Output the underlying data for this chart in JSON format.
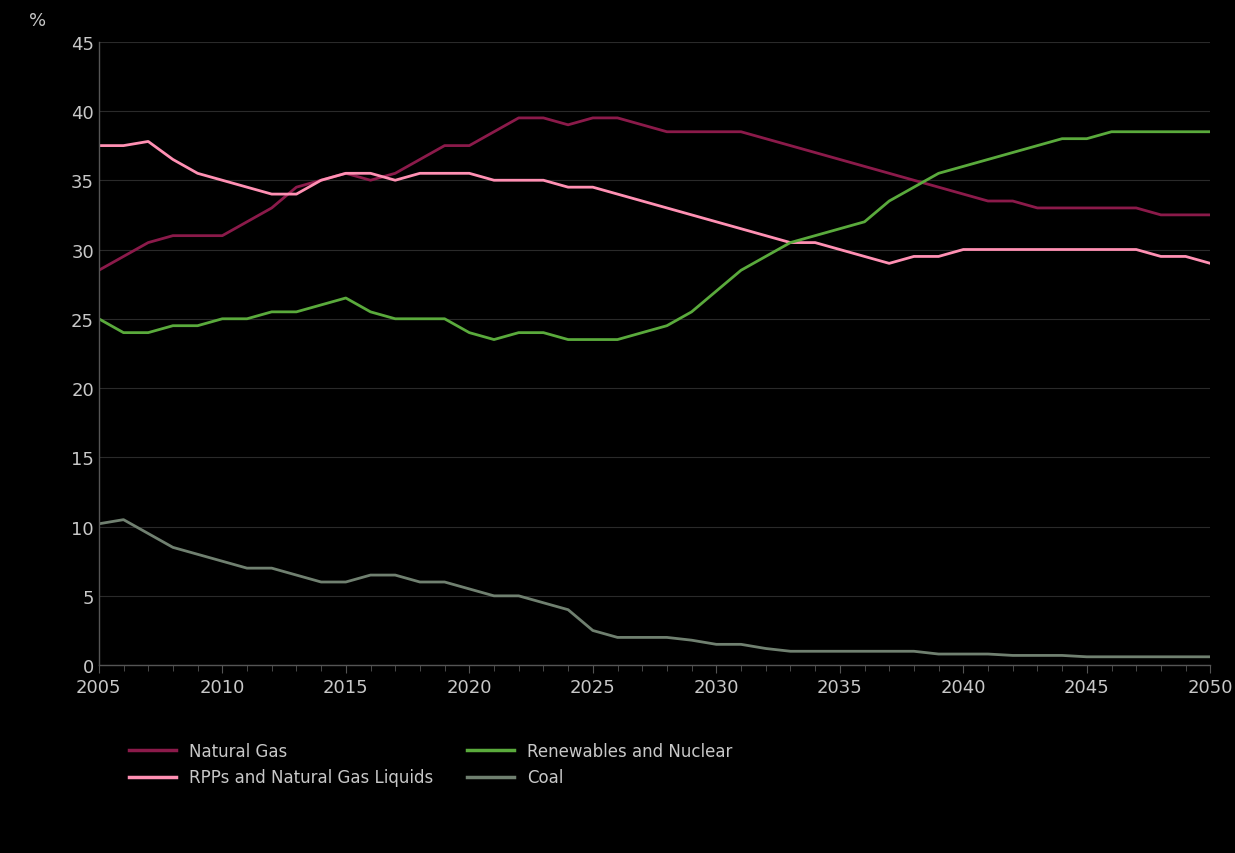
{
  "ylabel": "%",
  "xlim": [
    2005,
    2050
  ],
  "ylim": [
    0,
    45
  ],
  "yticks": [
    0,
    5,
    10,
    15,
    20,
    25,
    30,
    35,
    40,
    45
  ],
  "xticks": [
    2005,
    2010,
    2015,
    2020,
    2025,
    2030,
    2035,
    2040,
    2045,
    2050
  ],
  "background_color": "#000000",
  "text_color": "#c8c8c8",
  "grid_color": "#2a2a2a",
  "spine_color": "#555555",
  "series": [
    {
      "name": "Natural Gas",
      "color": "#8B1A4A",
      "x": [
        2005,
        2006,
        2007,
        2008,
        2009,
        2010,
        2011,
        2012,
        2013,
        2014,
        2015,
        2016,
        2017,
        2018,
        2019,
        2020,
        2021,
        2022,
        2023,
        2024,
        2025,
        2026,
        2027,
        2028,
        2029,
        2030,
        2031,
        2032,
        2033,
        2034,
        2035,
        2036,
        2037,
        2038,
        2039,
        2040,
        2041,
        2042,
        2043,
        2044,
        2045,
        2046,
        2047,
        2048,
        2049,
        2050
      ],
      "y": [
        28.5,
        29.5,
        30.5,
        31.0,
        31.0,
        31.0,
        32.0,
        33.0,
        34.5,
        35.0,
        35.5,
        35.0,
        35.5,
        36.5,
        37.5,
        37.5,
        38.5,
        39.5,
        39.5,
        39.0,
        39.5,
        39.5,
        39.0,
        38.5,
        38.5,
        38.5,
        38.5,
        38.0,
        37.5,
        37.0,
        36.5,
        36.0,
        35.5,
        35.0,
        34.5,
        34.0,
        33.5,
        33.5,
        33.0,
        33.0,
        33.0,
        33.0,
        33.0,
        32.5,
        32.5,
        32.5
      ]
    },
    {
      "name": "RPPs and Natural Gas Liquids",
      "color": "#FF90B3",
      "x": [
        2005,
        2006,
        2007,
        2008,
        2009,
        2010,
        2011,
        2012,
        2013,
        2014,
        2015,
        2016,
        2017,
        2018,
        2019,
        2020,
        2021,
        2022,
        2023,
        2024,
        2025,
        2026,
        2027,
        2028,
        2029,
        2030,
        2031,
        2032,
        2033,
        2034,
        2035,
        2036,
        2037,
        2038,
        2039,
        2040,
        2041,
        2042,
        2043,
        2044,
        2045,
        2046,
        2047,
        2048,
        2049,
        2050
      ],
      "y": [
        37.5,
        37.5,
        37.8,
        36.5,
        35.5,
        35.0,
        34.5,
        34.0,
        34.0,
        35.0,
        35.5,
        35.5,
        35.0,
        35.5,
        35.5,
        35.5,
        35.0,
        35.0,
        35.0,
        34.5,
        34.5,
        34.0,
        33.5,
        33.0,
        32.5,
        32.0,
        31.5,
        31.0,
        30.5,
        30.5,
        30.0,
        29.5,
        29.0,
        29.5,
        29.5,
        30.0,
        30.0,
        30.0,
        30.0,
        30.0,
        30.0,
        30.0,
        30.0,
        29.5,
        29.5,
        29.0
      ]
    },
    {
      "name": "Renewables and Nuclear",
      "color": "#5aaa3c",
      "x": [
        2005,
        2006,
        2007,
        2008,
        2009,
        2010,
        2011,
        2012,
        2013,
        2014,
        2015,
        2016,
        2017,
        2018,
        2019,
        2020,
        2021,
        2022,
        2023,
        2024,
        2025,
        2026,
        2027,
        2028,
        2029,
        2030,
        2031,
        2032,
        2033,
        2034,
        2035,
        2036,
        2037,
        2038,
        2039,
        2040,
        2041,
        2042,
        2043,
        2044,
        2045,
        2046,
        2047,
        2048,
        2049,
        2050
      ],
      "y": [
        25.0,
        24.0,
        24.0,
        24.5,
        24.5,
        25.0,
        25.0,
        25.5,
        25.5,
        26.0,
        26.5,
        25.5,
        25.0,
        25.0,
        25.0,
        24.0,
        23.5,
        24.0,
        24.0,
        23.5,
        23.5,
        23.5,
        24.0,
        24.5,
        25.5,
        27.0,
        28.5,
        29.5,
        30.5,
        31.0,
        31.5,
        32.0,
        33.5,
        34.5,
        35.5,
        36.0,
        36.5,
        37.0,
        37.5,
        38.0,
        38.0,
        38.5,
        38.5,
        38.5,
        38.5,
        38.5
      ]
    },
    {
      "name": "Coal",
      "color": "#708070",
      "x": [
        2005,
        2006,
        2007,
        2008,
        2009,
        2010,
        2011,
        2012,
        2013,
        2014,
        2015,
        2016,
        2017,
        2018,
        2019,
        2020,
        2021,
        2022,
        2023,
        2024,
        2025,
        2026,
        2027,
        2028,
        2029,
        2030,
        2031,
        2032,
        2033,
        2034,
        2035,
        2036,
        2037,
        2038,
        2039,
        2040,
        2041,
        2042,
        2043,
        2044,
        2045,
        2046,
        2047,
        2048,
        2049,
        2050
      ],
      "y": [
        10.2,
        10.5,
        9.5,
        8.5,
        8.0,
        7.5,
        7.0,
        7.0,
        6.5,
        6.0,
        6.0,
        6.5,
        6.5,
        6.0,
        6.0,
        5.5,
        5.0,
        5.0,
        4.5,
        4.0,
        2.5,
        2.0,
        2.0,
        2.0,
        1.8,
        1.5,
        1.5,
        1.2,
        1.0,
        1.0,
        1.0,
        1.0,
        1.0,
        1.0,
        0.8,
        0.8,
        0.8,
        0.7,
        0.7,
        0.7,
        0.6,
        0.6,
        0.6,
        0.6,
        0.6,
        0.6
      ]
    }
  ],
  "legend": [
    {
      "name": "Natural Gas",
      "color": "#8B1A4A"
    },
    {
      "name": "RPPs and Natural Gas Liquids",
      "color": "#FF90B3"
    },
    {
      "name": "Renewables and Nuclear",
      "color": "#5aaa3c"
    },
    {
      "name": "Coal",
      "color": "#708070"
    }
  ]
}
